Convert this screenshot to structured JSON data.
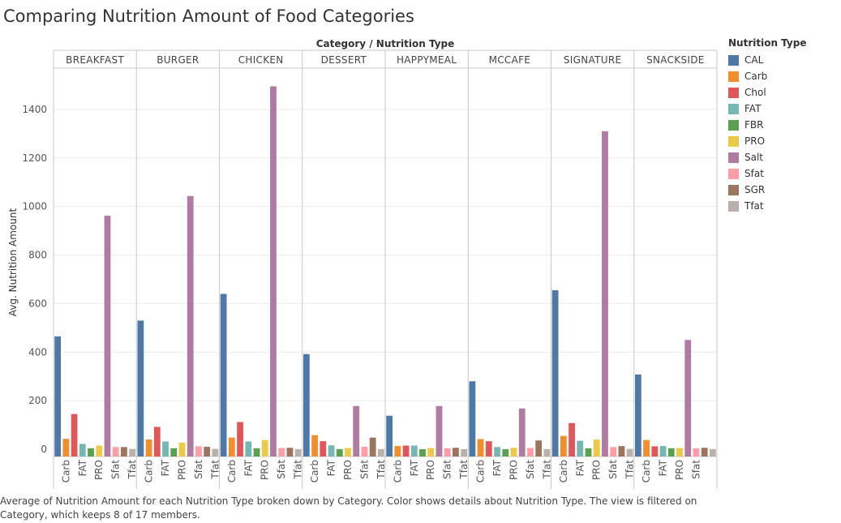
{
  "title": "Comparing Nutrition Amount of Food Categories",
  "caption": "Average of Nutrition Amount for each Nutrition Type broken down by Category.  Color shows details about Nutrition Type. The view is filtered on Category, which keeps 8 of 17 members.",
  "legend": {
    "title": "Nutrition Type",
    "items": [
      {
        "label": "CAL",
        "color": "#4e79a7"
      },
      {
        "label": "Carb",
        "color": "#f28e2b"
      },
      {
        "label": "Chol",
        "color": "#e15759"
      },
      {
        "label": "FAT",
        "color": "#76b7b2"
      },
      {
        "label": "FBR",
        "color": "#59a14f"
      },
      {
        "label": "PRO",
        "color": "#edc948"
      },
      {
        "label": "Salt",
        "color": "#b07aa1"
      },
      {
        "label": "Sfat",
        "color": "#ff9da7"
      },
      {
        "label": "SGR",
        "color": "#9c755f"
      },
      {
        "label": "Tfat",
        "color": "#bab0ac"
      }
    ]
  },
  "chart_data": {
    "type": "bar",
    "title": "Comparing Nutrition Amount of Food Categories",
    "column_header": "Category  /  Nutrition Type",
    "ylabel": "Avg. Nutrition Amount",
    "ylim": [
      -30,
      1570
    ],
    "y_ticks": [
      0,
      200,
      400,
      600,
      800,
      1000,
      1200,
      1400
    ],
    "grid": true,
    "legend_position": "right",
    "nutrition_types": [
      "CAL",
      "Carb",
      "Chol",
      "FAT",
      "FBR",
      "PRO",
      "Salt",
      "Sfat",
      "SGR",
      "Tfat"
    ],
    "x_tick_labels": [
      "Carb",
      "FAT",
      "PRO",
      "Sfat",
      "Tfat"
    ],
    "panels": [
      {
        "category": "BREAKFAST",
        "values": [
          465,
          43,
          145,
          22,
          4,
          15,
          962,
          9,
          9,
          1
        ],
        "x_tick_labels": [
          "Carb",
          "FAT",
          "PRO",
          "Sfat",
          "Tfat"
        ]
      },
      {
        "category": "BURGER",
        "values": [
          530,
          40,
          92,
          32,
          4,
          27,
          1043,
          12,
          10,
          1
        ],
        "x_tick_labels": [
          "Carb",
          "FAT",
          "PRO",
          "Sfat",
          "Tfat"
        ]
      },
      {
        "category": "CHICKEN",
        "values": [
          640,
          48,
          112,
          32,
          4,
          38,
          1495,
          5,
          6,
          0
        ],
        "x_tick_labels": [
          "Carb",
          "FAT",
          "PRO",
          "Sfat",
          "Tfat"
        ]
      },
      {
        "category": "DESSERT",
        "values": [
          392,
          58,
          33,
          16,
          0,
          5,
          178,
          10,
          48,
          0
        ],
        "x_tick_labels": [
          "Carb",
          "FAT",
          "PRO",
          "Sfat",
          "Tfat"
        ]
      },
      {
        "category": "HAPPYMEAL",
        "values": [
          138,
          13,
          15,
          15,
          0,
          5,
          178,
          4,
          6,
          0
        ],
        "x_tick_labels": [
          "Carb",
          "FAT",
          "PRO",
          "Sfat",
          "Tfat"
        ]
      },
      {
        "category": "MCCAFE",
        "values": [
          280,
          42,
          33,
          9,
          0,
          6,
          168,
          5,
          36,
          0
        ],
        "x_tick_labels": [
          "Carb",
          "FAT",
          "PRO",
          "Sfat",
          "Tfat"
        ]
      },
      {
        "category": "SIGNATURE",
        "values": [
          655,
          55,
          108,
          35,
          4,
          40,
          1310,
          9,
          13,
          1
        ],
        "x_tick_labels": [
          "Carb",
          "FAT",
          "PRO",
          "Sfat",
          "Tfat"
        ]
      },
      {
        "category": "SNACKSIDE",
        "values": [
          308,
          38,
          12,
          13,
          4,
          5,
          450,
          4,
          6,
          0
        ],
        "x_tick_labels": [
          "Carb",
          "FAT",
          "PRO",
          "Sfat"
        ]
      }
    ]
  }
}
